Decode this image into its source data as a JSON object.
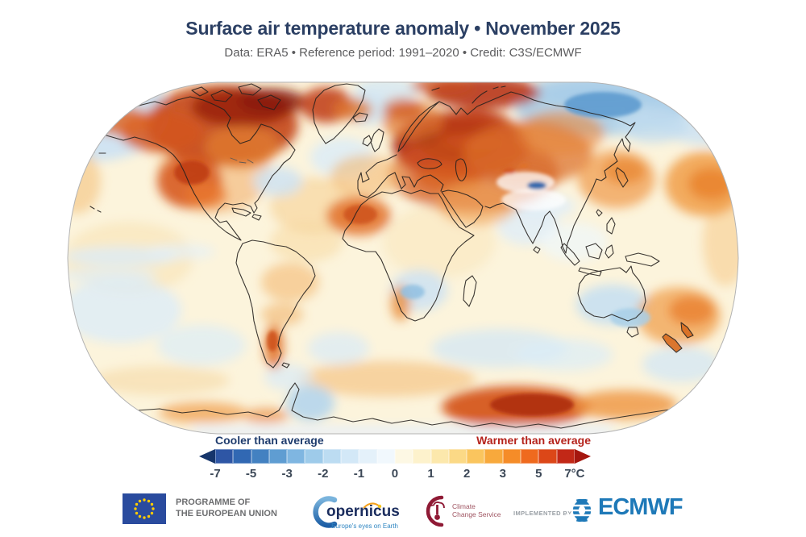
{
  "title": "Surface air temperature anomaly • November 2025",
  "subtitle": "Data: ERA5 • Reference period: 1991–2020 • Credit: C3S/ECMWF",
  "legend": {
    "cooler_label": "Cooler than average",
    "warmer_label": "Warmer than average",
    "cooler_color": "#1f3c6d",
    "warmer_color": "#b5231c",
    "arrow_left_color": "#16356b",
    "arrow_right_color": "#a5170f",
    "tick_labels": [
      "-7",
      "-5",
      "-3",
      "-2",
      "-1",
      "0",
      "1",
      "2",
      "3",
      "5",
      "7°C"
    ],
    "block_colors": [
      "#2e56a5",
      "#3168b3",
      "#4381c1",
      "#5f9dd2",
      "#7fb6e1",
      "#9ecbea",
      "#bcdcf2",
      "#d3e8f7",
      "#e4f1fa",
      "#f1f8fd",
      "#fdf8e4",
      "#fdf2cc",
      "#fce8ac",
      "#fbd986",
      "#fac55e",
      "#f8a93c",
      "#f58c28",
      "#ef6a1e",
      "#dc4718",
      "#c22817"
    ]
  },
  "map": {
    "warm_regions": [
      "Canada and Canadian Arctic",
      "Greenland",
      "Western United States",
      "Eastern Europe and western Russia",
      "North-west Africa",
      "Middle East",
      "North Pacific",
      "Tasman Sea and New Zealand",
      "East Antarctica"
    ],
    "cool_regions": [
      "Eastern Siberia",
      "Central Asia",
      "India",
      "Interior Australia",
      "Southern Africa",
      "Equatorial East Pacific",
      "Antarctic Peninsula"
    ]
  },
  "footer": {
    "eu": {
      "line1": "PROGRAMME OF",
      "line2": "THE EUROPEAN UNION"
    },
    "copernicus": {
      "wordmark": "opernicus",
      "tagline": "Europe's eyes on Earth"
    },
    "climate_service": {
      "line1": "Climate",
      "line2": "Change Service"
    },
    "implemented_by": "IMPLEMENTED BY",
    "ecmwf": "ECMWF"
  }
}
